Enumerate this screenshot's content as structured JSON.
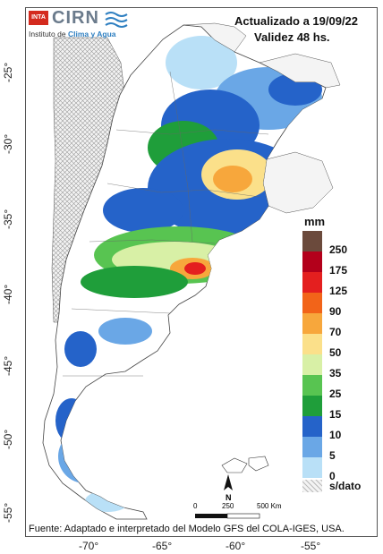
{
  "header": {
    "updated": "Actualizado a 19/09/22",
    "validity": "Validez 48 hs."
  },
  "logo": {
    "badge": "INTA",
    "name": "CIRN",
    "subtitle_prefix": "Instituto de ",
    "subtitle_accent": "Clima y Agua"
  },
  "axes": {
    "latitudes": [
      "-25°",
      "-30°",
      "-35°",
      "-40°",
      "-45°",
      "-50°",
      "-55°"
    ],
    "longitudes": [
      "-70°",
      "-65°",
      "-60°",
      "-55°"
    ]
  },
  "legend": {
    "unit": "mm",
    "items": [
      {
        "label": "250",
        "color": "#6b4a3c"
      },
      {
        "label": "175",
        "color": "#b3001b"
      },
      {
        "label": "125",
        "color": "#e41f1f"
      },
      {
        "label": "90",
        "color": "#f26419"
      },
      {
        "label": "70",
        "color": "#f7a73c"
      },
      {
        "label": "50",
        "color": "#fbe08a"
      },
      {
        "label": "35",
        "color": "#d8f0a6"
      },
      {
        "label": "25",
        "color": "#58c451"
      },
      {
        "label": "15",
        "color": "#1f9e3a"
      },
      {
        "label": "10",
        "color": "#2563c9"
      },
      {
        "label": "5",
        "color": "#6aa7e6"
      },
      {
        "label": "0",
        "color": "#b9e0f7"
      },
      {
        "label": "s/dato",
        "color": "#d9d9d9"
      }
    ]
  },
  "scale_bar": {
    "zero": "0",
    "mid": "250",
    "end": "500 Km",
    "north": "N"
  },
  "source": "Fuente: Adaptado e interpretado del Modelo GFS del COLA-IGES, USA."
}
